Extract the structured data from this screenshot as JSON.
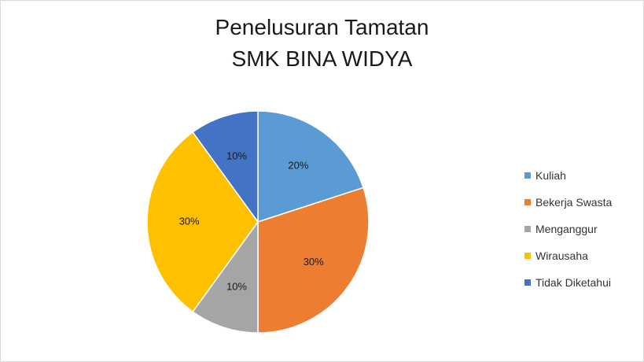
{
  "chart_data": {
    "type": "pie",
    "title": [
      "Penelusuran Tamatan",
      "SMK BINA WIDYA"
    ],
    "categories": [
      "Kuliah",
      "Bekerja Swasta",
      "Menganggur",
      "Wirausaha",
      "Tidak Diketahui"
    ],
    "values": [
      20,
      30,
      10,
      30,
      10
    ],
    "labels": [
      "20%",
      "30%",
      "10%",
      "30%",
      "10%"
    ],
    "colors": [
      "#5b9bd5",
      "#ed7d31",
      "#a5a5a5",
      "#ffc000",
      "#4472c4"
    ],
    "legend_position": "right"
  }
}
